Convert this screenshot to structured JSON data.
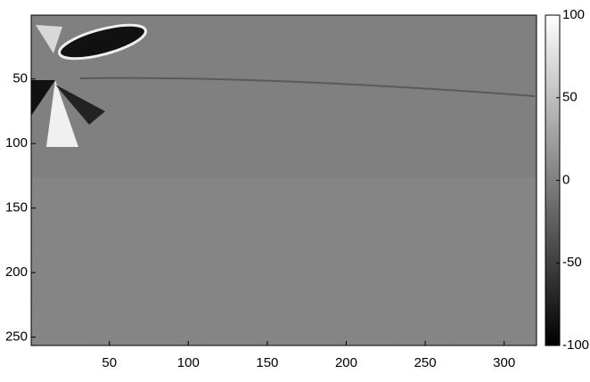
{
  "chart_data": {
    "type": "image",
    "xlim": [
      0.5,
      320.5
    ],
    "xticks": [
      50,
      100,
      150,
      200,
      250,
      300
    ],
    "ylim": [
      0.5,
      256.5
    ],
    "yticks": [
      50,
      100,
      150,
      200,
      250
    ],
    "y_reversed": true,
    "colormap": "gray",
    "clim": [
      -100,
      100
    ],
    "colorbar_ticks": [
      100,
      50,
      0,
      -50,
      -100
    ]
  }
}
